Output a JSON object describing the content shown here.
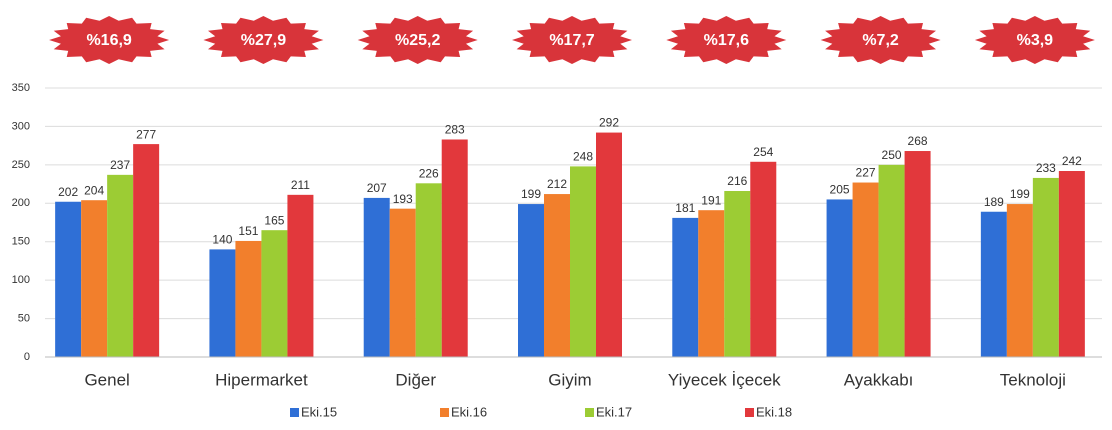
{
  "chart_data": {
    "type": "bar",
    "badges": [
      "%16,9",
      "%27,9",
      "%25,2",
      "%17,7",
      "%17,6",
      "%7,2",
      "%3,9"
    ],
    "categories": [
      "Genel",
      "Hipermarket",
      "Diğer",
      "Giyim",
      "Yiyecek İçecek",
      "Ayakkabı",
      "Teknoloji"
    ],
    "series": [
      {
        "name": "Eki.15",
        "color": "#2f6fd6",
        "values": [
          202,
          140,
          207,
          199,
          181,
          205,
          189
        ]
      },
      {
        "name": "Eki.16",
        "color": "#f27f2c",
        "values": [
          204,
          151,
          193,
          212,
          191,
          227,
          199
        ]
      },
      {
        "name": "Eki.17",
        "color": "#9ccc34",
        "values": [
          237,
          165,
          226,
          248,
          216,
          250,
          233
        ]
      },
      {
        "name": "Eki.18",
        "color": "#e2383c",
        "values": [
          277,
          211,
          283,
          292,
          254,
          268,
          242
        ]
      }
    ],
    "ylim": [
      0,
      350
    ],
    "yticks": [
      0,
      50,
      100,
      150,
      200,
      250,
      300,
      350
    ],
    "grid": true,
    "legend": "bottom"
  }
}
